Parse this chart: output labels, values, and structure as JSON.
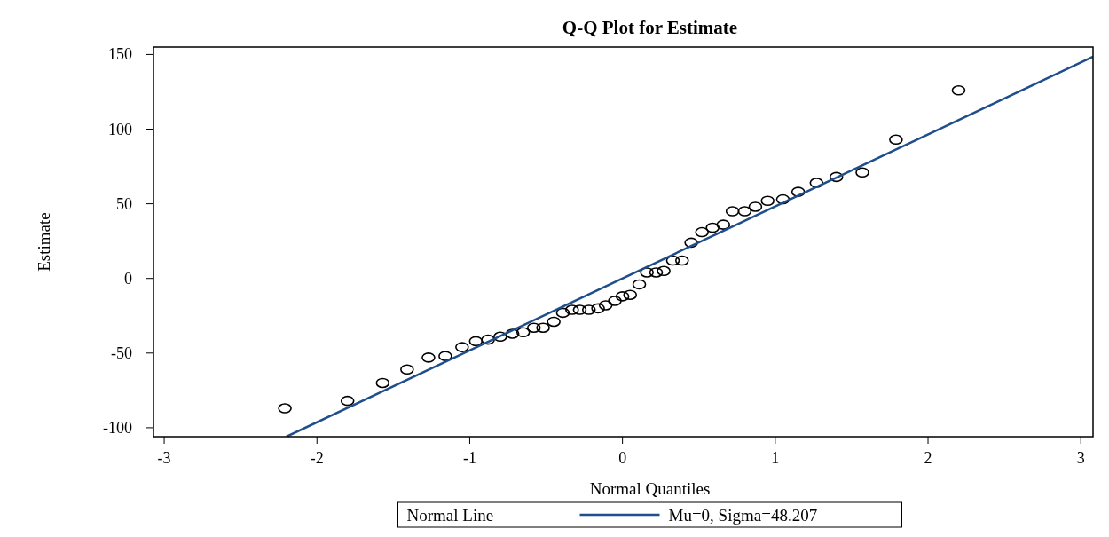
{
  "chart_data": {
    "type": "scatter",
    "title": "Q-Q Plot for Estimate",
    "xlabel": "Normal Quantiles",
    "ylabel": "Estimate",
    "legend_title": "Normal Line",
    "legend": "bottom",
    "grid": false,
    "xlim": [
      -3.07,
      3.08
    ],
    "ylim": [
      -106,
      155
    ],
    "xticks": [
      -3,
      -2,
      -1,
      0,
      1,
      2,
      3
    ],
    "yticks": [
      -100,
      -50,
      0,
      50,
      100,
      150
    ],
    "series": [
      {
        "color": "#000000",
        "marker": "circle",
        "x": [
          -2.21,
          -1.8,
          -1.57,
          -1.41,
          -1.27,
          -1.16,
          -1.05,
          -0.96,
          -0.88,
          -0.8,
          -0.72,
          -0.65,
          -0.58,
          -0.52,
          -0.45,
          -0.39,
          -0.33,
          -0.28,
          -0.22,
          -0.16,
          -0.11,
          -0.05,
          0,
          0.05,
          0.11,
          0.16,
          0.22,
          0.27,
          0.33,
          0.39,
          0.45,
          0.52,
          0.59,
          0.66,
          0.72,
          0.8,
          0.87,
          0.95,
          1.05,
          1.15,
          1.27,
          1.4,
          1.57,
          1.79,
          2.2
        ],
        "values": [
          -87,
          -82,
          -70,
          -61,
          -53,
          -52,
          -46,
          -42,
          -41,
          -39,
          -37,
          -36,
          -33,
          -33,
          -29,
          -23,
          -21,
          -21,
          -21,
          -20,
          -18,
          -15,
          -12,
          -11,
          -4,
          4,
          4,
          5,
          12,
          12,
          24,
          31,
          34,
          36,
          45,
          45,
          48,
          52,
          53,
          58,
          64,
          68,
          71,
          93,
          126
        ]
      },
      {
        "type": "line",
        "name": "Mu=0, Sigma=48.207",
        "color": "#1f4e8c",
        "line_style": "solid",
        "marker": "none",
        "x": [
          -2.2,
          3.08
        ],
        "values": [
          -106,
          148.5
        ]
      }
    ]
  }
}
